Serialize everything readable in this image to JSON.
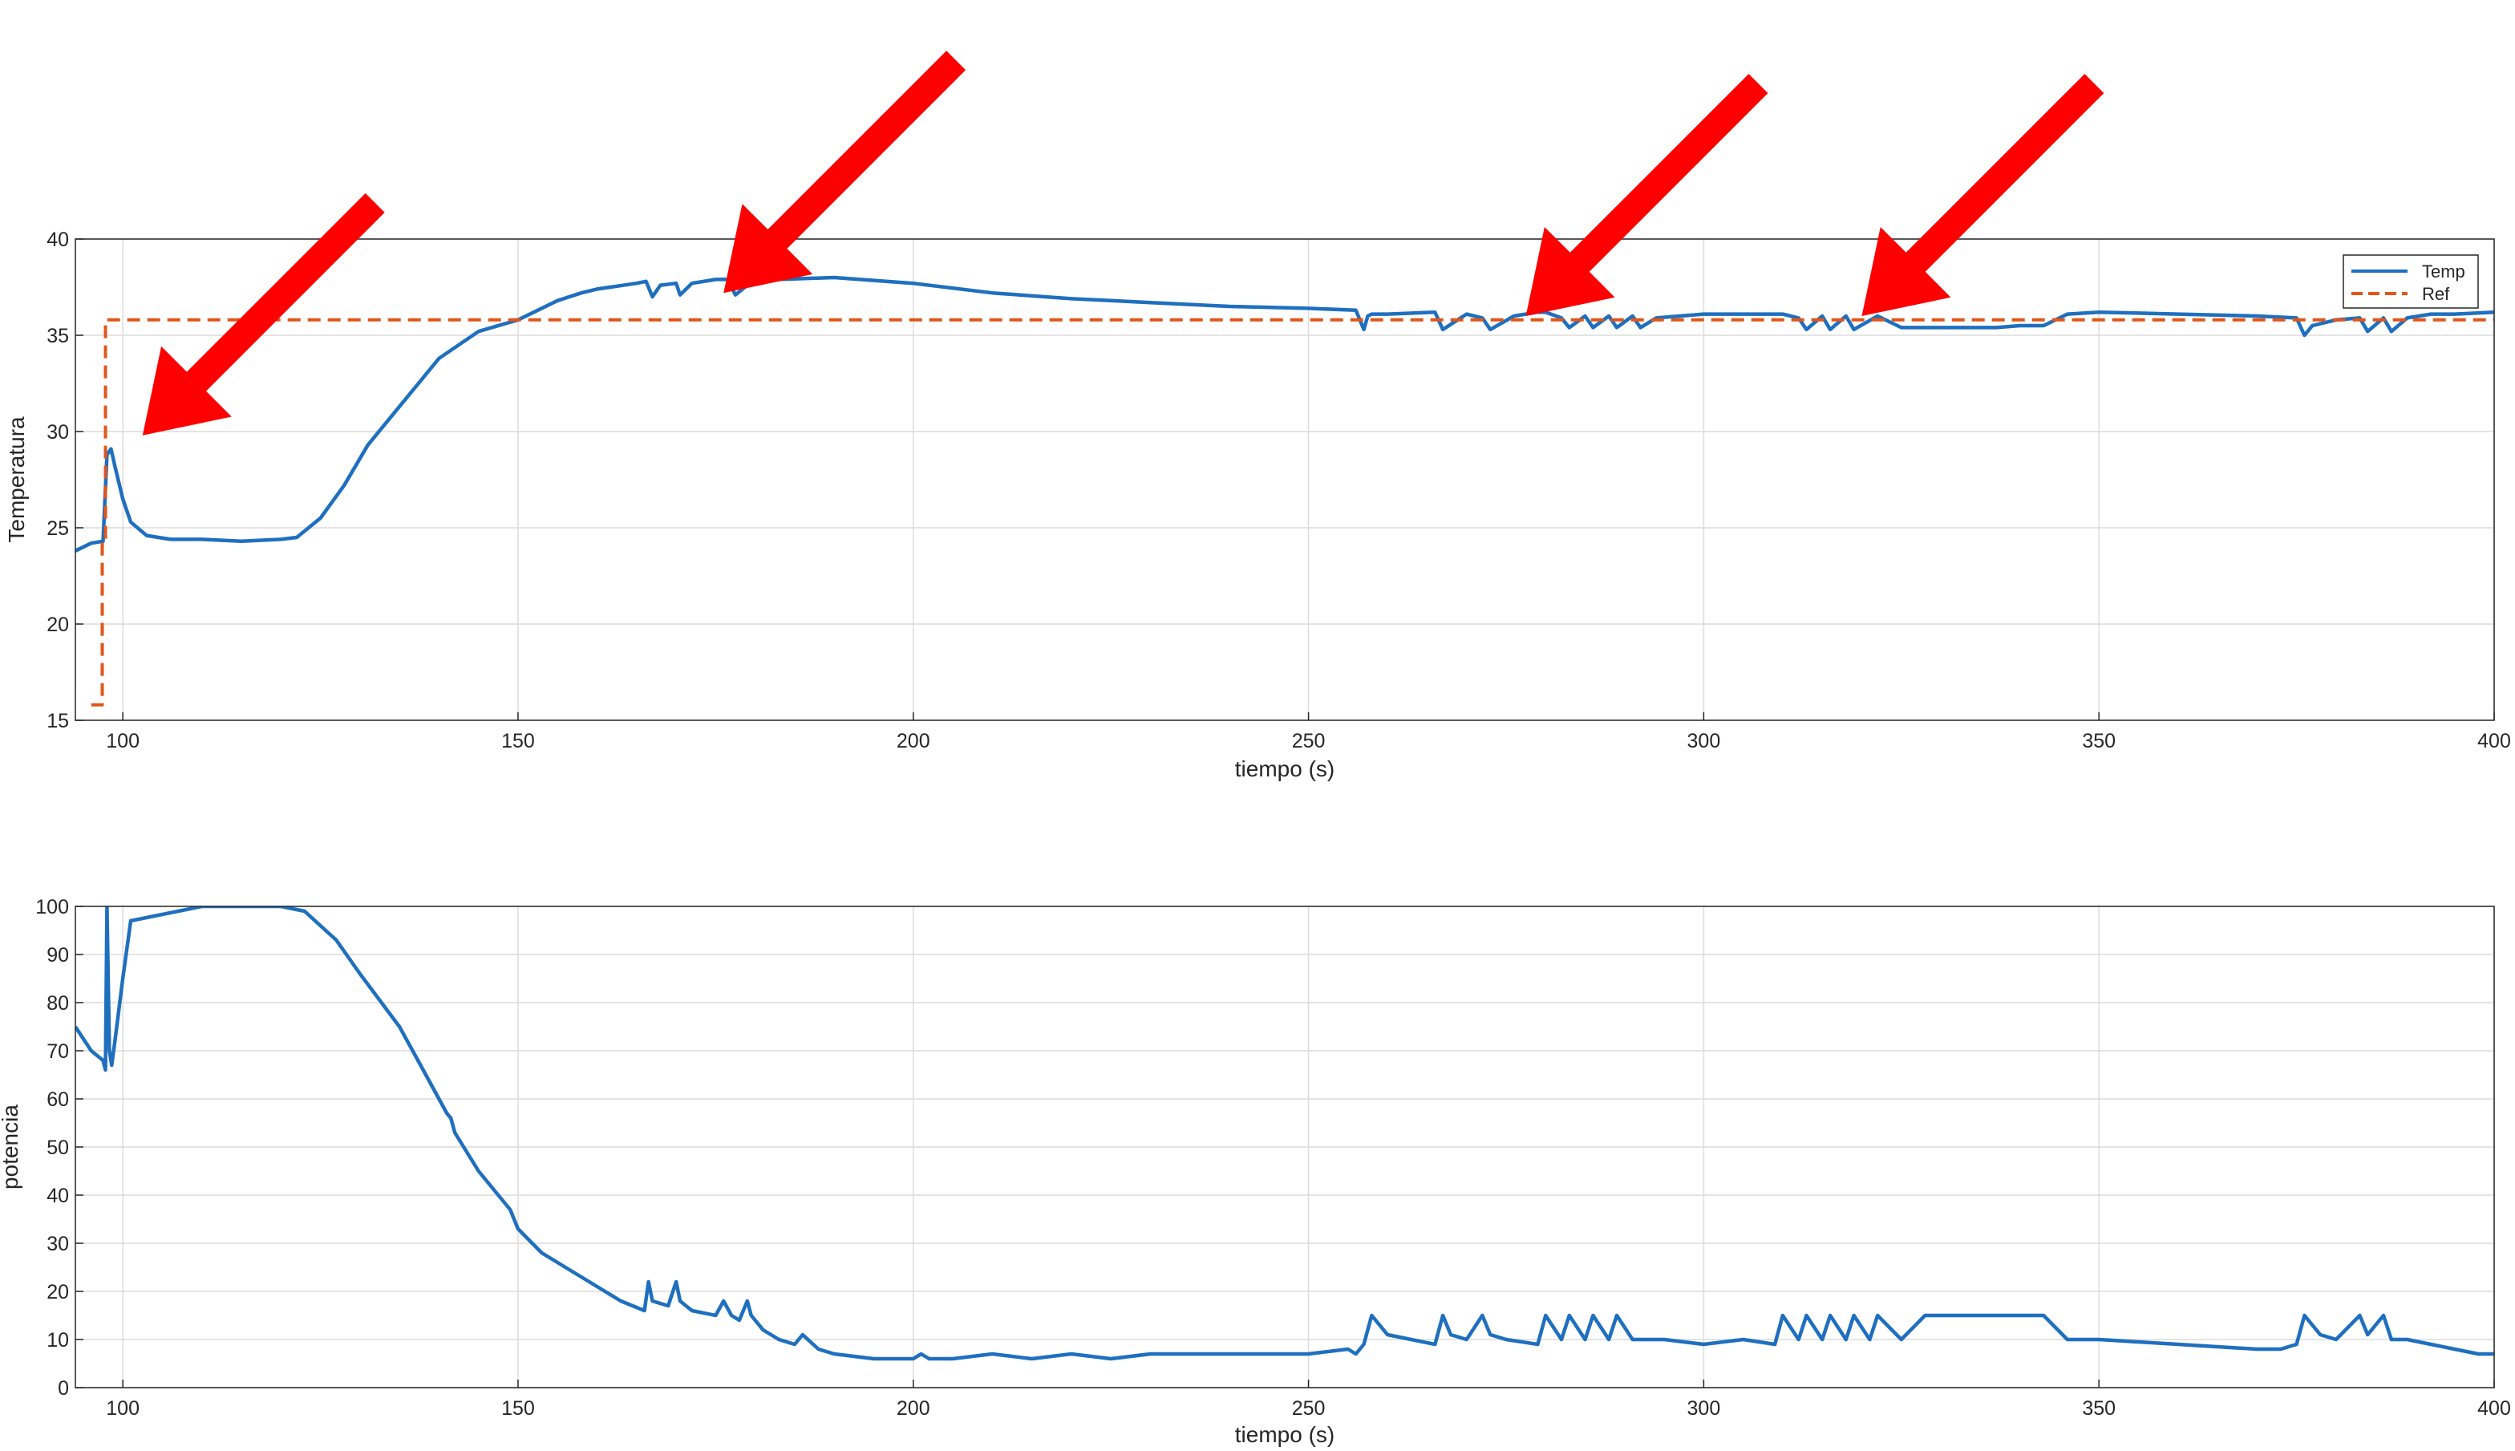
{
  "colors": {
    "temp": "#1f6fbf",
    "ref": "#e0561b",
    "arrow": "#ff0000",
    "grid": "#dcdcdc",
    "axis": "#262626"
  },
  "chart_data": [
    {
      "type": "line",
      "title": "",
      "xlabel": "tiempo (s)",
      "ylabel": "Temperatura",
      "xlim": [
        94,
        400
      ],
      "ylim": [
        15,
        40
      ],
      "xticks": [
        100,
        150,
        200,
        250,
        300,
        350,
        400
      ],
      "yticks": [
        15,
        20,
        25,
        30,
        35,
        40
      ],
      "grid": true,
      "legend": {
        "location": "top-right",
        "entries": [
          "Temp",
          "Ref"
        ]
      },
      "series": [
        {
          "name": "Temp",
          "style": "solid",
          "x": [
            94,
            96,
            97.5,
            98,
            98.5,
            99,
            100,
            101,
            103,
            106,
            110,
            115,
            120,
            122,
            125,
            128,
            131,
            135,
            140,
            145,
            150,
            155,
            158,
            160,
            165,
            166.2,
            167,
            168,
            170,
            170.5,
            172,
            175,
            176.5,
            177.5,
            179,
            183,
            190,
            200,
            210,
            220,
            230,
            240,
            250,
            256,
            257,
            257.5,
            258,
            260,
            266,
            267,
            270,
            272,
            273,
            276,
            279,
            280,
            282,
            283,
            285,
            286,
            288,
            289,
            291,
            292,
            294,
            297,
            300,
            310,
            312,
            313,
            315,
            316,
            318,
            319,
            322,
            325,
            328,
            331,
            334,
            337,
            340,
            343,
            346,
            350,
            360,
            370,
            375,
            376,
            377,
            380,
            383,
            384,
            386,
            387,
            389,
            392,
            395,
            400
          ],
          "y": [
            23.8,
            24.2,
            24.3,
            28.8,
            29.1,
            28.2,
            26.5,
            25.3,
            24.6,
            24.4,
            24.4,
            24.3,
            24.4,
            24.5,
            25.5,
            27.2,
            29.3,
            31.3,
            33.8,
            35.2,
            35.8,
            36.8,
            37.2,
            37.4,
            37.7,
            37.8,
            37.0,
            37.6,
            37.7,
            37.1,
            37.7,
            37.9,
            37.9,
            37.1,
            37.6,
            37.9,
            38.0,
            37.7,
            37.2,
            36.9,
            36.7,
            36.5,
            36.4,
            36.3,
            35.3,
            36.0,
            36.1,
            36.1,
            36.2,
            35.3,
            36.1,
            35.9,
            35.3,
            36.0,
            36.2,
            36.2,
            35.9,
            35.4,
            36.0,
            35.4,
            36.0,
            35.4,
            36.0,
            35.4,
            35.9,
            36.0,
            36.1,
            36.1,
            35.9,
            35.3,
            36.0,
            35.3,
            36.0,
            35.3,
            36.0,
            35.4,
            35.4,
            35.4,
            35.4,
            35.4,
            35.5,
            35.5,
            36.1,
            36.2,
            36.1,
            36.0,
            35.9,
            35.0,
            35.5,
            35.8,
            35.9,
            35.2,
            35.9,
            35.2,
            35.9,
            36.1,
            36.1,
            36.2
          ]
        },
        {
          "name": "Ref",
          "style": "dashed",
          "x": [
            96,
            97.4,
            97.4,
            97.8,
            97.8,
            400
          ],
          "y": [
            15.8,
            15.8,
            24.3,
            24.3,
            35.8,
            35.8
          ]
        }
      ],
      "annotations": [
        {
          "type": "arrow",
          "tip_x": 102.5,
          "tip_y": 29.8
        },
        {
          "type": "arrow",
          "tip_x": 176,
          "tip_y": 37.2
        },
        {
          "type": "arrow",
          "tip_x": 277.5,
          "tip_y": 36.0
        },
        {
          "type": "arrow",
          "tip_x": 320,
          "tip_y": 36.0
        }
      ]
    },
    {
      "type": "line",
      "title": "",
      "xlabel": "tiempo (s)",
      "ylabel": "potencia",
      "xlim": [
        94,
        400
      ],
      "ylim": [
        0,
        100
      ],
      "xticks": [
        100,
        150,
        200,
        250,
        300,
        350,
        400
      ],
      "yticks": [
        0,
        10,
        20,
        30,
        40,
        50,
        60,
        70,
        80,
        90,
        100
      ],
      "grid": true,
      "series": [
        {
          "x": [
            94,
            96,
            97.5,
            97.8,
            98,
            98.3,
            98.6,
            99,
            100,
            101,
            110,
            120,
            123,
            125,
            127,
            130,
            135,
            138,
            141,
            141.5,
            142,
            145,
            149,
            149.5,
            150,
            153,
            155,
            157,
            160,
            163,
            166,
            166.5,
            167,
            169,
            170,
            170.5,
            172,
            175,
            176,
            177,
            178,
            179,
            179.5,
            181,
            183,
            185,
            186,
            188,
            190,
            195,
            200,
            201,
            202,
            205,
            210,
            215,
            220,
            225,
            230,
            240,
            250,
            255,
            256,
            257,
            258,
            260,
            266,
            267,
            268,
            270,
            272,
            273,
            275,
            279,
            280,
            282,
            283,
            285,
            286,
            288,
            289,
            291,
            295,
            300,
            305,
            309,
            310,
            312,
            313,
            315,
            316,
            318,
            319,
            321,
            322,
            325,
            328,
            331,
            334,
            337,
            340,
            343,
            346,
            350,
            360,
            370,
            373,
            375,
            376,
            378,
            380,
            383,
            384,
            386,
            387,
            389,
            392,
            395,
            398,
            400
          ],
          "y": [
            75,
            70,
            68,
            66,
            100,
            70,
            67,
            72,
            85,
            97,
            100,
            100,
            99,
            96,
            93,
            86,
            75,
            66,
            57,
            56,
            53,
            45,
            37,
            35,
            33,
            28,
            26,
            24,
            21,
            18,
            16,
            22,
            18,
            17,
            22,
            18,
            16,
            15,
            18,
            15,
            14,
            18,
            15,
            12,
            10,
            9,
            11,
            8,
            7,
            6,
            6,
            7,
            6,
            6,
            7,
            6,
            7,
            6,
            7,
            7,
            7,
            8,
            7,
            9,
            15,
            11,
            9,
            15,
            11,
            10,
            15,
            11,
            10,
            9,
            15,
            10,
            15,
            10,
            15,
            10,
            15,
            10,
            10,
            9,
            10,
            9,
            15,
            10,
            15,
            10,
            15,
            10,
            15,
            10,
            15,
            10,
            15,
            15,
            15,
            15,
            15,
            15,
            10,
            10,
            9,
            8,
            8,
            9,
            15,
            11,
            10,
            15,
            11,
            15,
            10,
            10,
            9,
            8,
            7,
            7
          ]
        }
      ]
    }
  ]
}
